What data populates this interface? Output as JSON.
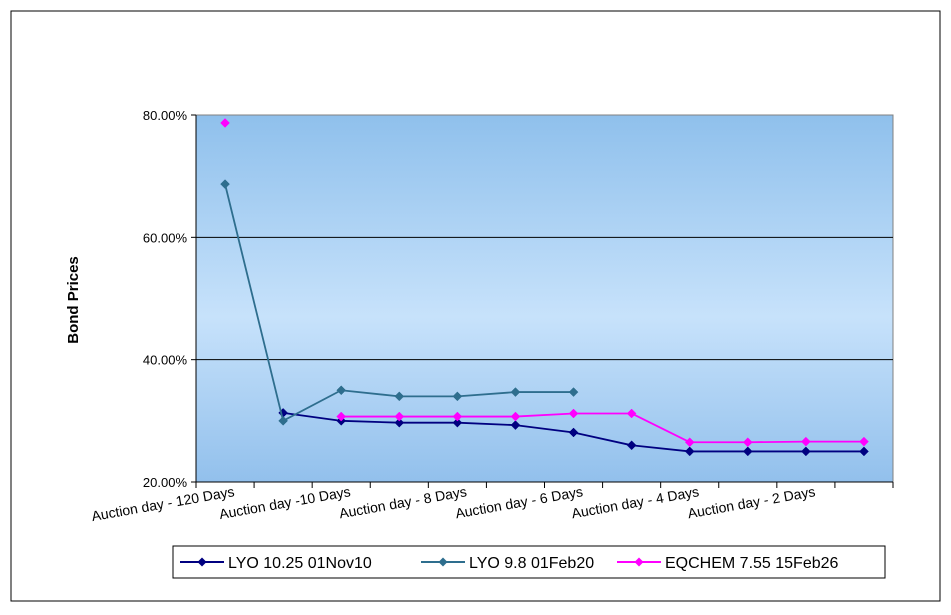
{
  "chart_data": {
    "type": "line",
    "title": "",
    "ylabel": "Bond Prices",
    "xlabel": "",
    "ylim": [
      0.2,
      0.8
    ],
    "yticks": [
      0.2,
      0.4,
      0.6,
      0.8
    ],
    "ytick_labels": [
      "20.00%",
      "40.00%",
      "60.00%",
      "80.00%"
    ],
    "categories": [
      "Auction day - 120 Days",
      "",
      "Auction day -10 Days",
      "",
      "Auction day - 8 Days",
      "",
      "Auction day - 6 Days",
      "",
      "Auction day - 4 Days",
      "",
      "Auction day - 2 Days",
      ""
    ],
    "grid": "horizontal",
    "legend_position": "bottom",
    "series": [
      {
        "name": "LYO 10.25 01Nov10",
        "color": "#000080",
        "marker": "diamond",
        "values": [
          null,
          0.313,
          0.3,
          0.297,
          0.297,
          0.293,
          0.281,
          0.26,
          0.25,
          0.25,
          0.25,
          0.25
        ]
      },
      {
        "name": "LYO 9.8 01Feb20",
        "color": "#2E6E8E",
        "marker": "diamond",
        "values": [
          0.687,
          0.3,
          0.35,
          0.34,
          0.34,
          0.347,
          0.347,
          null,
          null,
          null,
          null,
          null
        ]
      },
      {
        "name": "EQCHEM 7.55 15Feb26",
        "color": "#FF00FF",
        "marker": "diamond",
        "values": [
          0.787,
          null,
          0.307,
          0.307,
          0.307,
          0.307,
          0.312,
          0.312,
          0.265,
          0.265,
          0.266,
          0.266
        ]
      }
    ]
  }
}
